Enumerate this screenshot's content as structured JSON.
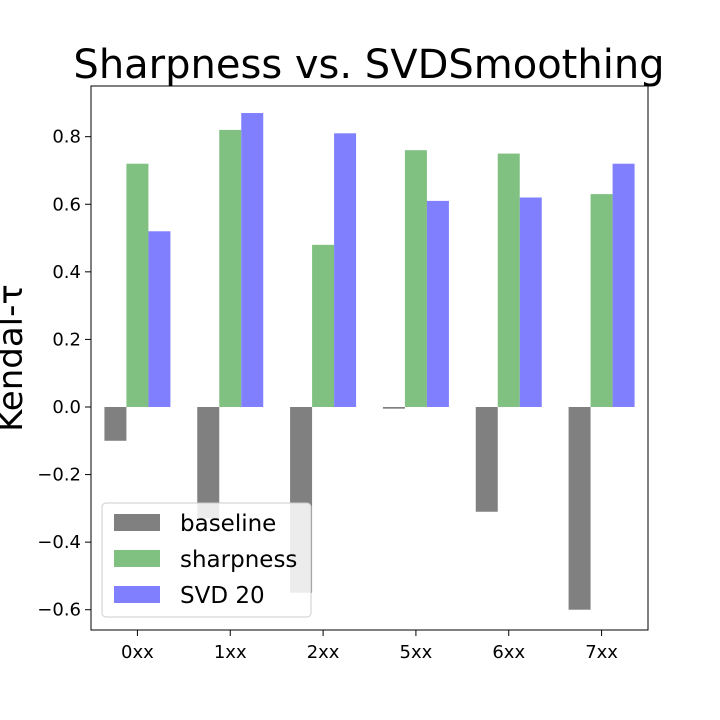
{
  "chart_data": {
    "type": "bar",
    "title": "Sharpness vs. SVDSmoothing",
    "xlabel": "",
    "ylabel": "Kendal-τ",
    "categories": [
      "0xx",
      "1xx",
      "2xx",
      "5xx",
      "6xx",
      "7xx"
    ],
    "series": [
      {
        "name": "baseline",
        "color": "#808080",
        "values": [
          -0.1,
          -0.33,
          -0.55,
          -0.005,
          -0.31,
          -0.6
        ]
      },
      {
        "name": "sharpness",
        "color": "#80c080",
        "values": [
          0.72,
          0.82,
          0.48,
          0.76,
          0.75,
          0.63
        ]
      },
      {
        "name": "SVD 20",
        "color": "#8080ff",
        "values": [
          0.52,
          0.87,
          0.81,
          0.61,
          0.62,
          0.72
        ]
      }
    ],
    "ylim": [
      -0.66,
      0.95
    ],
    "yticks": [
      -0.6,
      -0.4,
      -0.2,
      0.0,
      0.2,
      0.4,
      0.6,
      0.8
    ],
    "ytick_labels": [
      "−0.6",
      "−0.4",
      "−0.2",
      "0.0",
      "0.2",
      "0.4",
      "0.6",
      "0.8"
    ],
    "grid": false,
    "legend": "lower-left"
  }
}
